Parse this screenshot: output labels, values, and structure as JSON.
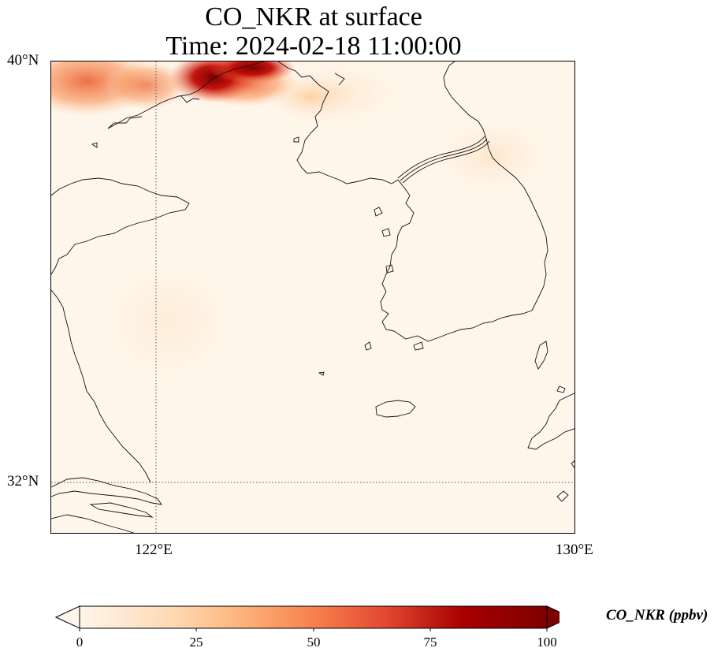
{
  "title": {
    "line1": "CO_NKR at surface",
    "line2": "Time: 2024-02-18 11:00:00"
  },
  "axes": {
    "lat_labels": [
      "40°N",
      "32°N"
    ],
    "lon_labels": [
      "122°E",
      "130°E"
    ],
    "gridlines": "dotted"
  },
  "colorbar": {
    "label": "CO_NKR (ppbv)",
    "ticks": [
      "0",
      "25",
      "50",
      "75",
      "100"
    ],
    "min": 0,
    "max": 100,
    "extend": "both",
    "colormap": [
      "#fff5eb",
      "#fdd9b4",
      "#fdb27a",
      "#f7814c",
      "#e34a33",
      "#a80000",
      "#7f0000"
    ]
  },
  "map_data": {
    "extent": {
      "lon_min": 120,
      "lon_max": 130,
      "lat_min": 31,
      "lat_max": 40
    },
    "background_ppbv": 3,
    "hotspot_region": "northwest corner near 121-124°E, 39.5-40°N",
    "hotspot_max_ppbv": 100
  }
}
